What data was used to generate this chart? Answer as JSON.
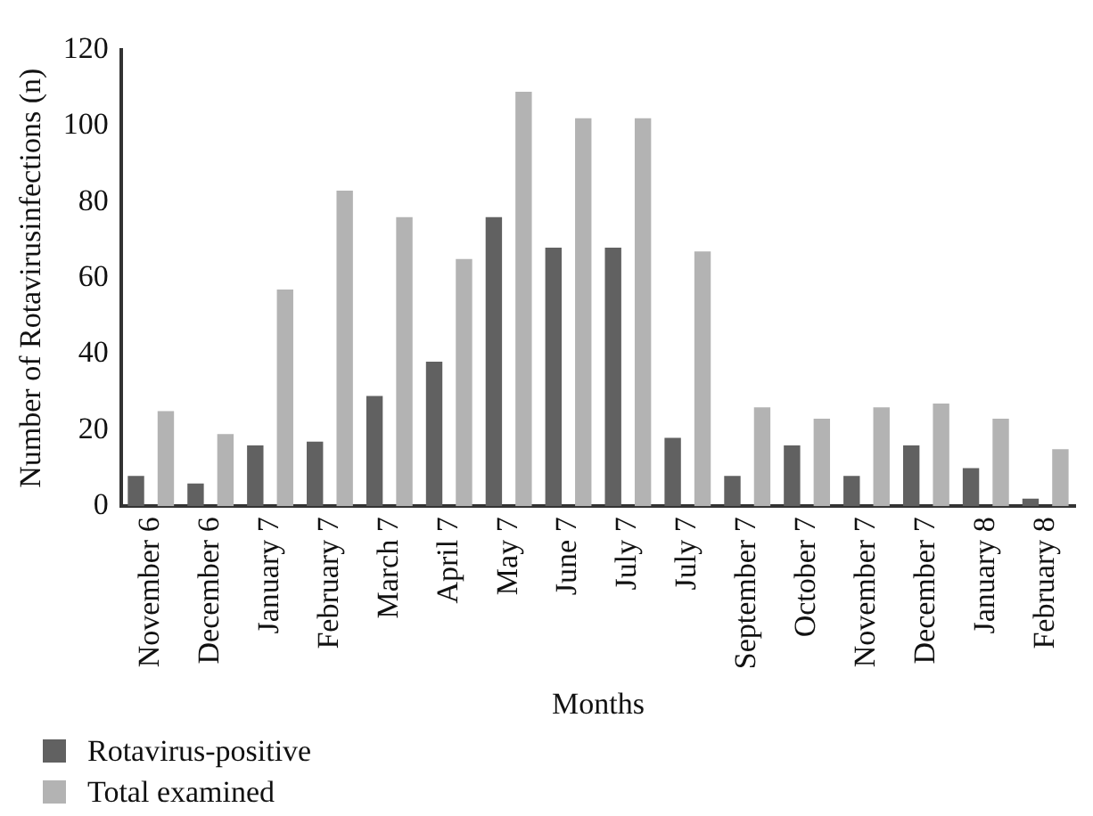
{
  "chart_data": {
    "type": "bar",
    "xlabel": "Months",
    "ylabel": "Number of Rotavirusinfections (n)",
    "categories": [
      "November 6",
      "December 6",
      "January 7",
      "February 7",
      "March 7",
      "April 7",
      "May 7",
      "June 7",
      "July 7",
      "July 7",
      "September 7",
      "October 7",
      "November 7",
      "December 7",
      "January 8",
      "February 8"
    ],
    "series": [
      {
        "name": "Rotavirus-positive",
        "color": "#616161",
        "values": [
          8,
          6,
          16,
          17,
          29,
          38,
          76,
          68,
          68,
          18,
          8,
          16,
          8,
          16,
          10,
          2
        ]
      },
      {
        "name": "Total examined",
        "color": "#b3b3b3",
        "values": [
          25,
          19,
          57,
          83,
          76,
          65,
          109,
          102,
          102,
          67,
          26,
          23,
          26,
          27,
          23,
          15
        ]
      }
    ],
    "ylim": [
      0,
      120
    ],
    "yticks": [
      0,
      20,
      40,
      60,
      80,
      100,
      120
    ],
    "grid": false,
    "legend": "bottom left"
  }
}
